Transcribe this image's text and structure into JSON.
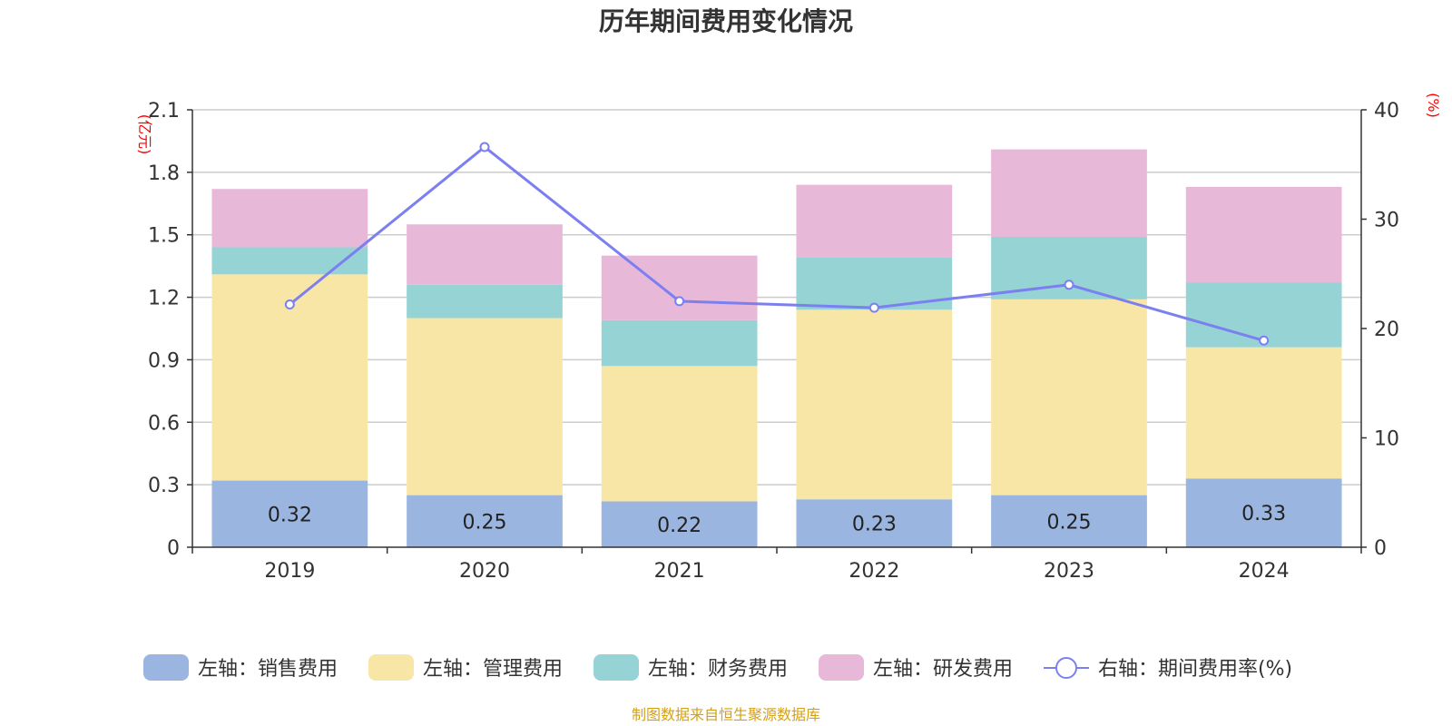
{
  "chart_data": {
    "type": "bar",
    "title": "历年期间费用变化情况",
    "categories": [
      "2019",
      "2020",
      "2021",
      "2022",
      "2023",
      "2024"
    ],
    "left_axis": {
      "unit_label": "(亿元)",
      "ylim": [
        0,
        2.1
      ],
      "ticks": [
        "0",
        "0.3",
        "0.6",
        "0.9",
        "1.2",
        "1.5",
        "1.8",
        "2.1"
      ]
    },
    "right_axis": {
      "unit_label": "(%)",
      "ylim": [
        0,
        40
      ],
      "ticks": [
        "0",
        "10",
        "20",
        "30",
        "40"
      ]
    },
    "series": [
      {
        "name": "左轴：销售费用",
        "type": "bar",
        "axis": "left",
        "color": "#9bb5e1",
        "values": [
          0.32,
          0.25,
          0.22,
          0.23,
          0.25,
          0.33
        ],
        "labels": [
          "0.32",
          "0.25",
          "0.22",
          "0.23",
          "0.25",
          "0.33"
        ]
      },
      {
        "name": "左轴：管理费用",
        "type": "bar",
        "axis": "left",
        "color": "#f8e6a6",
        "values": [
          0.99,
          0.85,
          0.65,
          0.91,
          0.94,
          0.63
        ]
      },
      {
        "name": "左轴：财务费用",
        "type": "bar",
        "axis": "left",
        "color": "#96d3d4",
        "values": [
          0.13,
          0.16,
          0.22,
          0.25,
          0.3,
          0.31
        ]
      },
      {
        "name": "左轴：研发费用",
        "type": "bar",
        "axis": "left",
        "color": "#e8b8d9",
        "values": [
          0.28,
          0.29,
          0.31,
          0.35,
          0.42,
          0.46
        ]
      },
      {
        "name": "右轴：期间费用率(%)",
        "type": "line",
        "axis": "right",
        "color": "#7b7ff0",
        "values": [
          22.2,
          36.6,
          22.5,
          21.9,
          24.0,
          18.9
        ]
      }
    ],
    "grid": true,
    "legend_position": "bottom"
  },
  "colors": {
    "axis_unit_label": "#ff0000",
    "source_text": "#d4a017"
  },
  "footer": {
    "source": "制图数据来自恒生聚源数据库"
  }
}
